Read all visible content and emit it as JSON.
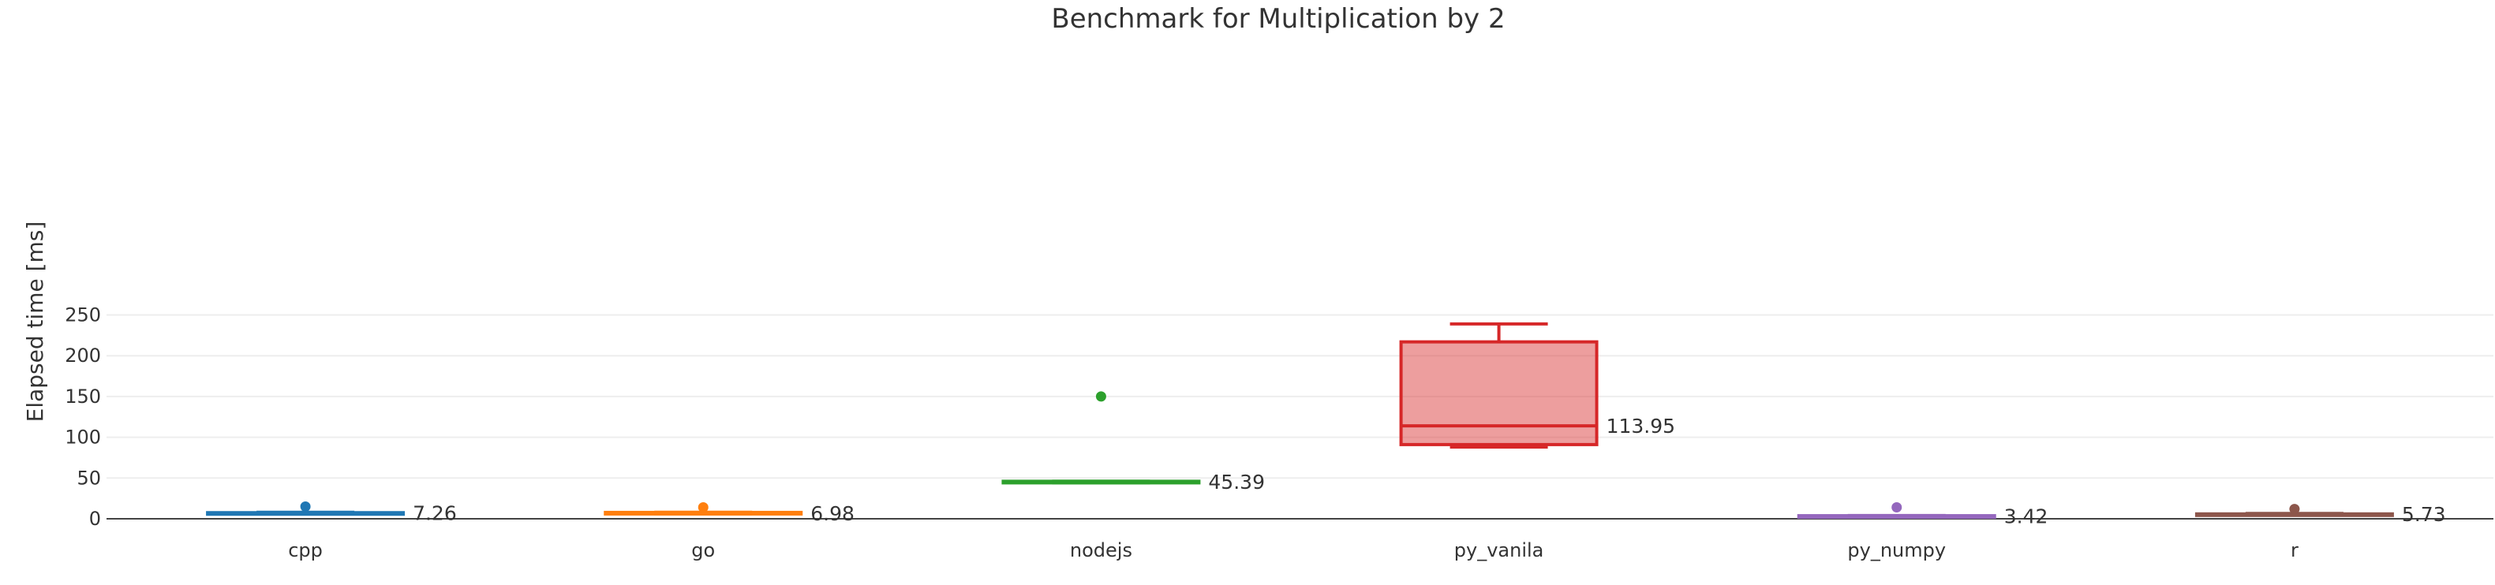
{
  "chart_data": {
    "type": "box",
    "title": "Benchmark for Multiplication by 2",
    "xlabel": "",
    "ylabel": "Elapsed time [ms]",
    "ylim": [
      0,
      275
    ],
    "yticks": [
      0,
      50,
      100,
      150,
      200,
      250
    ],
    "grid": true,
    "legend": "none",
    "categories": [
      "cpp",
      "go",
      "nodejs",
      "py_vanila",
      "py_numpy",
      "r"
    ],
    "series": [
      {
        "category": "cpp",
        "color": "#1f77b4",
        "min": 7.0,
        "q1": 7.1,
        "median": 7.26,
        "q3": 7.5,
        "max": 8.0,
        "outliers": [
          15.0
        ],
        "median_label": "7.26"
      },
      {
        "category": "go",
        "color": "#ff7f0e",
        "min": 6.0,
        "q1": 6.2,
        "median": 6.98,
        "q3": 7.8,
        "max": 8.0,
        "outliers": [
          14.0
        ],
        "median_label": "6.98"
      },
      {
        "category": "nodejs",
        "color": "#2ca02c",
        "min": 44.0,
        "q1": 44.5,
        "median": 45.39,
        "q3": 46.0,
        "max": 46.0,
        "outliers": [
          150.0
        ],
        "median_label": "45.39"
      },
      {
        "category": "py_vanila",
        "color": "#d62728",
        "min": 88.0,
        "q1": 91.0,
        "median": 113.95,
        "q3": 217.0,
        "max": 239.0,
        "outliers": [],
        "median_label": "113.95"
      },
      {
        "category": "py_numpy",
        "color": "#9467bd",
        "min": 3.0,
        "q1": 3.1,
        "median": 3.42,
        "q3": 3.8,
        "max": 4.0,
        "outliers": [
          14.0
        ],
        "median_label": "3.42"
      },
      {
        "category": "r",
        "color": "#8c564b",
        "min": 5.0,
        "q1": 5.3,
        "median": 5.73,
        "q3": 6.0,
        "max": 6.5,
        "outliers": [
          12.0
        ],
        "median_label": "5.73"
      }
    ]
  }
}
